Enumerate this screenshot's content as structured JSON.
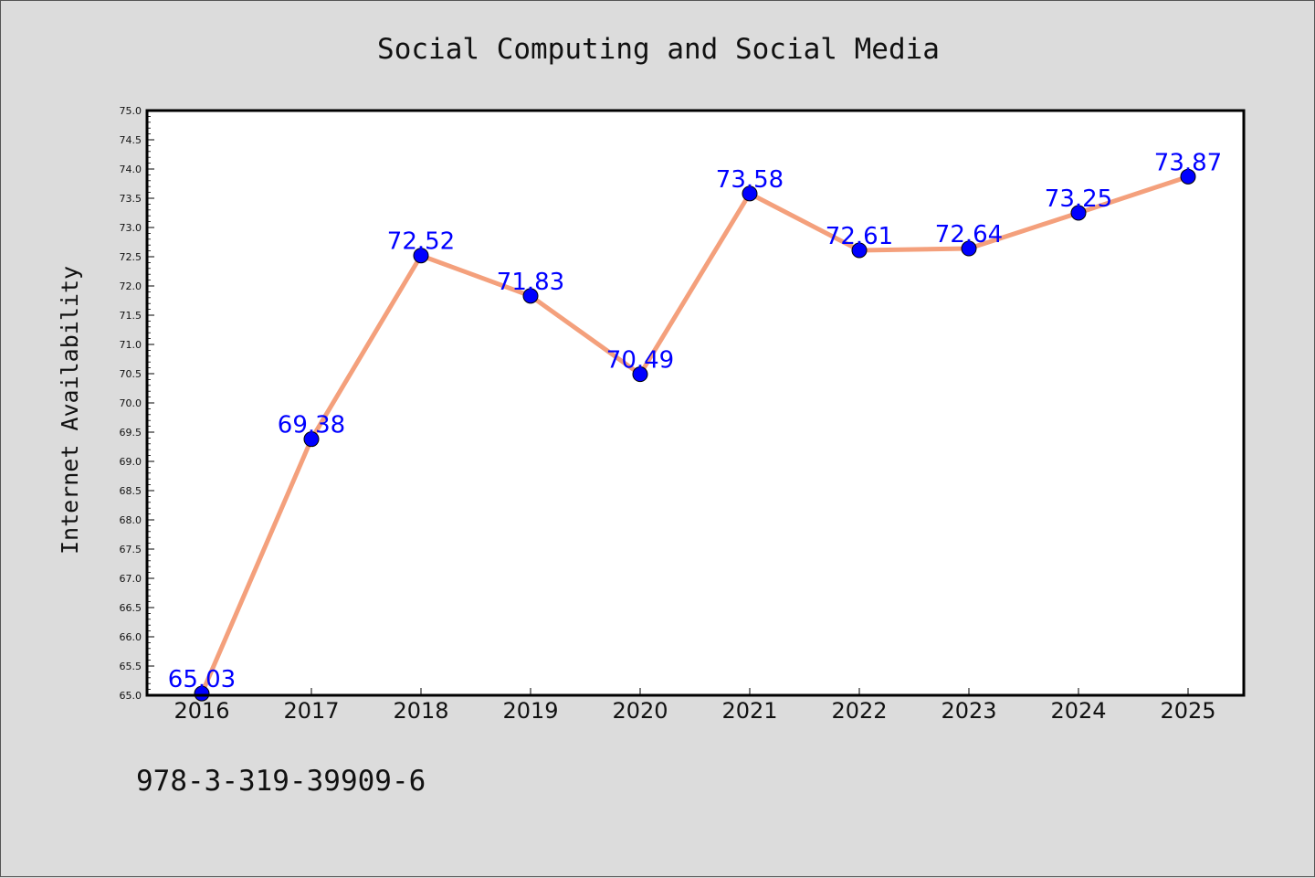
{
  "chart_data": {
    "type": "line",
    "title": "Social Computing and Social Media",
    "xlabel": "",
    "ylabel": "Internet Availability",
    "categories": [
      "2016",
      "2017",
      "2018",
      "2019",
      "2020",
      "2021",
      "2022",
      "2023",
      "2024",
      "2025"
    ],
    "series": [
      {
        "values": [
          65.03,
          69.38,
          72.52,
          71.83,
          70.49,
          73.58,
          72.61,
          72.64,
          73.25,
          73.87
        ],
        "labels": [
          "65.03",
          "69.38",
          "72.52",
          "71.83",
          "70.49",
          "73.58",
          "72.61",
          "72.64",
          "73.25",
          "73.87"
        ],
        "line_color": "#f4a07c",
        "marker_color": "#0000ff",
        "label_color": "#0000ff"
      }
    ],
    "ylim": [
      65.0,
      75.0
    ],
    "yticks": [
      "65.0",
      "65.5",
      "66.0",
      "66.5",
      "67.0",
      "67.5",
      "68.0",
      "68.5",
      "69.0",
      "69.5",
      "70.0",
      "70.5",
      "71.0",
      "71.5",
      "72.0",
      "72.5",
      "73.0",
      "73.5",
      "74.0",
      "74.5",
      "75.0"
    ],
    "grid": false,
    "legend": "none",
    "background_color": "#dcdcdc",
    "plot_background": "#ffffff"
  },
  "footer": {
    "text": "978-3-319-39909-6"
  }
}
